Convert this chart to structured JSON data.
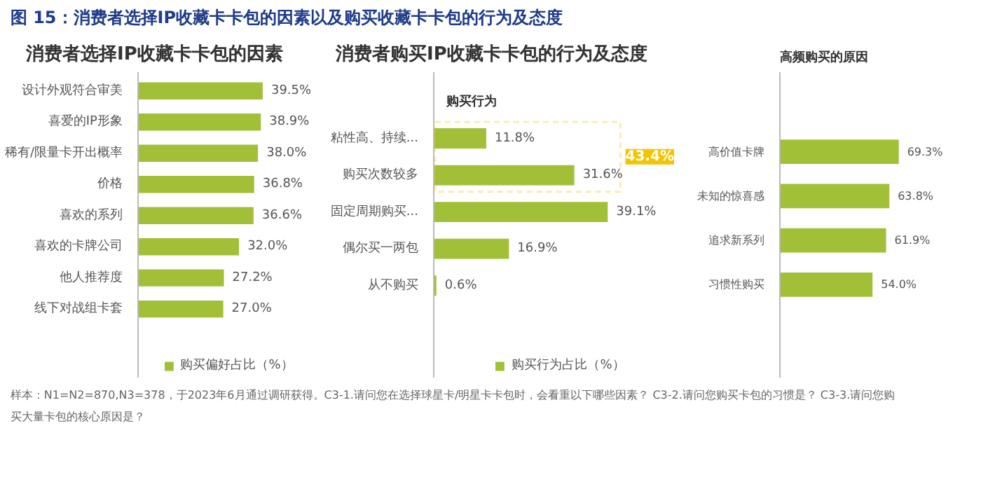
{
  "chart_data": [
    {
      "type": "bar",
      "orientation": "horizontal",
      "title": "消费者选择IP收藏卡卡包的因素",
      "annotations": [
        "图 15：消费者选择IP收藏卡卡包的因素以及购买收藏卡卡包的行为及态度"
      ],
      "categories": [
        "设计外观符合审美",
        "喜爱的IP形象",
        "稀有/限量卡开出概率",
        "价格",
        "喜欢的系列",
        "喜欢的卡牌公司",
        "他人推荐度",
        "线下对战组卡套"
      ],
      "series": [
        {
          "name": "购买偏好占比（%）",
          "color": "#a2c037",
          "values": [
            39.5,
            38.9,
            38.0,
            36.8,
            36.6,
            32.0,
            27.2,
            27.0
          ],
          "value_labels": [
            "39.5%",
            "38.9%",
            "38.0%",
            "36.8%",
            "36.6%",
            "32.0%",
            "27.2%",
            "27.0%"
          ]
        }
      ],
      "tick_labels": "y",
      "legend": "bottom"
    },
    {
      "type": "bar",
      "orientation": "horizontal",
      "title": "消费者购买IP收藏卡卡包的行为及态度",
      "subtitle": "购买行为",
      "annotations": [
        "43.4%"
      ],
      "categories": [
        "粘性高、持续...",
        "购买次数较多",
        "固定周期购买...",
        "偶尔买一两包",
        "从不购买"
      ],
      "series": [
        {
          "name": "购买行为占比（%）",
          "color": "#a2c037",
          "values": [
            11.8,
            31.6,
            39.1,
            16.9,
            0.6
          ],
          "value_labels": [
            "11.8%",
            "31.6%",
            "39.1%",
            "16.9%",
            "0.6%"
          ]
        }
      ],
      "tick_labels": "y",
      "legend": "bottom"
    },
    {
      "type": "bar",
      "orientation": "horizontal",
      "title": "高频购买的原因",
      "annotations": [
        "样本：N1=N2=870,N3=378，于2023年6月通过调研获得。C3-1.请问您在选择球星卡/明星卡卡包时，会看重以下哪些因素？ C3-2.请问您购买卡包的习惯是？ C3-3.请问您购买大量卡包的核心原因是？"
      ],
      "categories": [
        "高价值卡牌",
        "未知的惊喜感",
        "追求新系列",
        "习惯性购买"
      ],
      "series": [
        {
          "color": "#a2c037",
          "values": [
            69.3,
            63.8,
            61.9,
            54.0
          ],
          "value_labels": [
            "69.3%",
            "63.8%",
            "61.9%",
            "54.0%"
          ]
        }
      ],
      "tick_labels": "y"
    }
  ]
}
